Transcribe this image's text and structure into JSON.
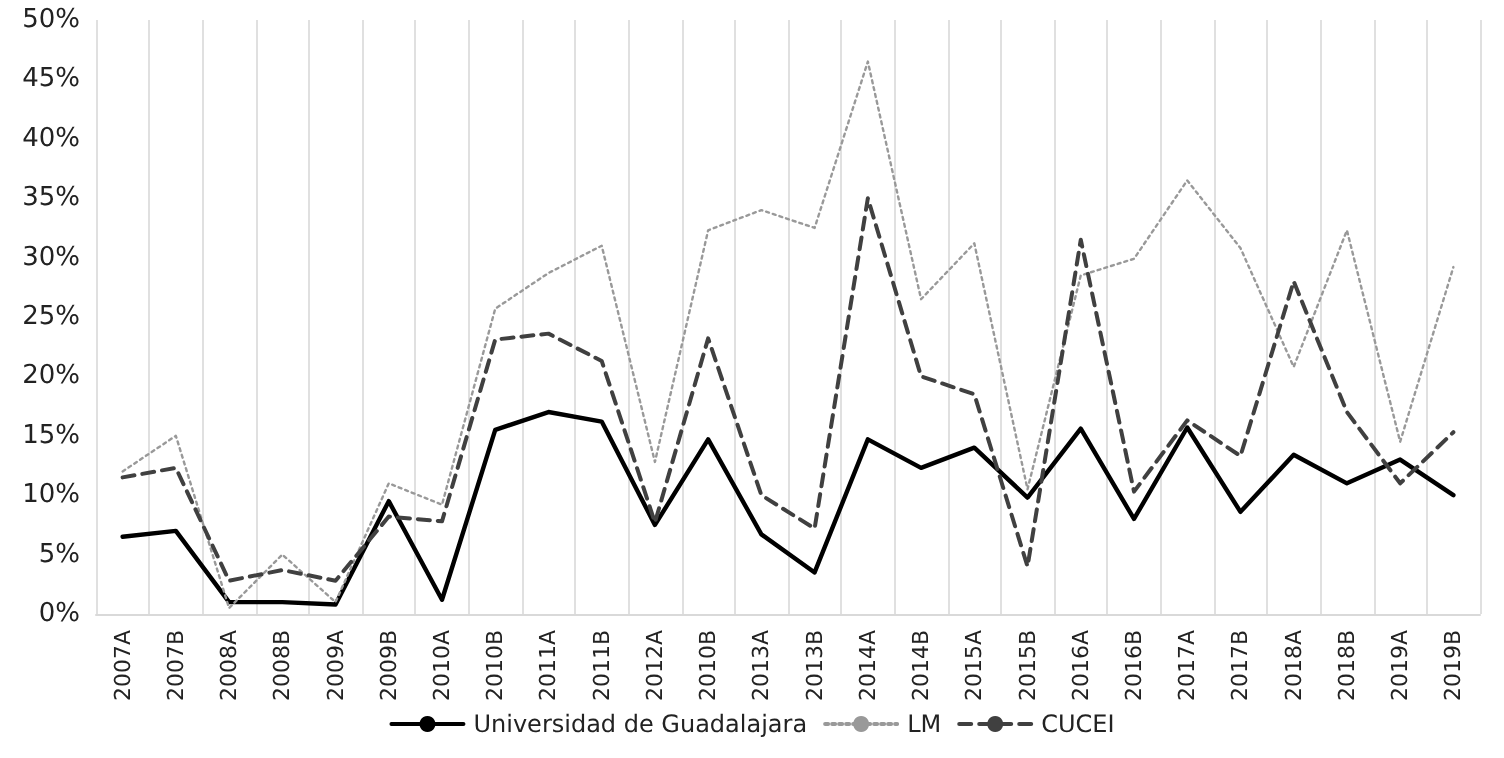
{
  "chart_data": {
    "type": "line",
    "categories": [
      "2007A",
      "2007B",
      "2008A",
      "2008B",
      "2009A",
      "2009B",
      "2010A",
      "2010B",
      "2011A",
      "2011B",
      "2012A",
      "2010B",
      "2013A",
      "2013B",
      "2014A",
      "2014B",
      "2015A",
      "2015B",
      "2016A",
      "2016B",
      "2017A",
      "2017B",
      "2018A",
      "2018B",
      "2019A",
      "2019B"
    ],
    "series": [
      {
        "name": "Universidad de Guadalajara",
        "color": "#000000",
        "line_style": "solid",
        "values": [
          6.5,
          7,
          1,
          1,
          0.8,
          9.5,
          1.2,
          15.5,
          17,
          16.2,
          7.5,
          14.7,
          6.7,
          3.5,
          14.7,
          12.3,
          14,
          9.8,
          15.6,
          8,
          15.7,
          8.6,
          13.4,
          11,
          13,
          10
        ]
      },
      {
        "name": "LM",
        "color": "#999999",
        "line_style": "dotted",
        "values": [
          12,
          15,
          0.5,
          5,
          1,
          11,
          9.2,
          25.7,
          28.7,
          31,
          12.8,
          32.3,
          34,
          32.5,
          46.5,
          26.5,
          31.2,
          10.5,
          28.5,
          29.9,
          36.5,
          30.8,
          20.8,
          32.3,
          14.5,
          29.2
        ]
      },
      {
        "name": "CUCEI",
        "color": "#404040",
        "line_style": "dashed",
        "values": [
          11.5,
          12.3,
          2.8,
          3.7,
          2.8,
          8.2,
          7.8,
          23.1,
          23.6,
          21.3,
          7.7,
          23.2,
          10,
          7.2,
          35,
          20,
          18.5,
          4,
          31.5,
          10.3,
          16.3,
          13.3,
          28,
          17,
          11,
          15.3
        ]
      }
    ],
    "ylim": [
      0,
      50
    ],
    "yticks": [
      {
        "value": 0,
        "label": "0%"
      },
      {
        "value": 5,
        "label": "5%"
      },
      {
        "value": 10,
        "label": "10%"
      },
      {
        "value": 15,
        "label": "15%"
      },
      {
        "value": 20,
        "label": "20%"
      },
      {
        "value": 25,
        "label": "25%"
      },
      {
        "value": 30,
        "label": "30%"
      },
      {
        "value": 35,
        "label": "35%"
      },
      {
        "value": 40,
        "label": "40%"
      },
      {
        "value": 45,
        "label": "45%"
      },
      {
        "value": 50,
        "label": "50%"
      }
    ],
    "grid": "x",
    "legend": "bottom",
    "marker": "none"
  }
}
